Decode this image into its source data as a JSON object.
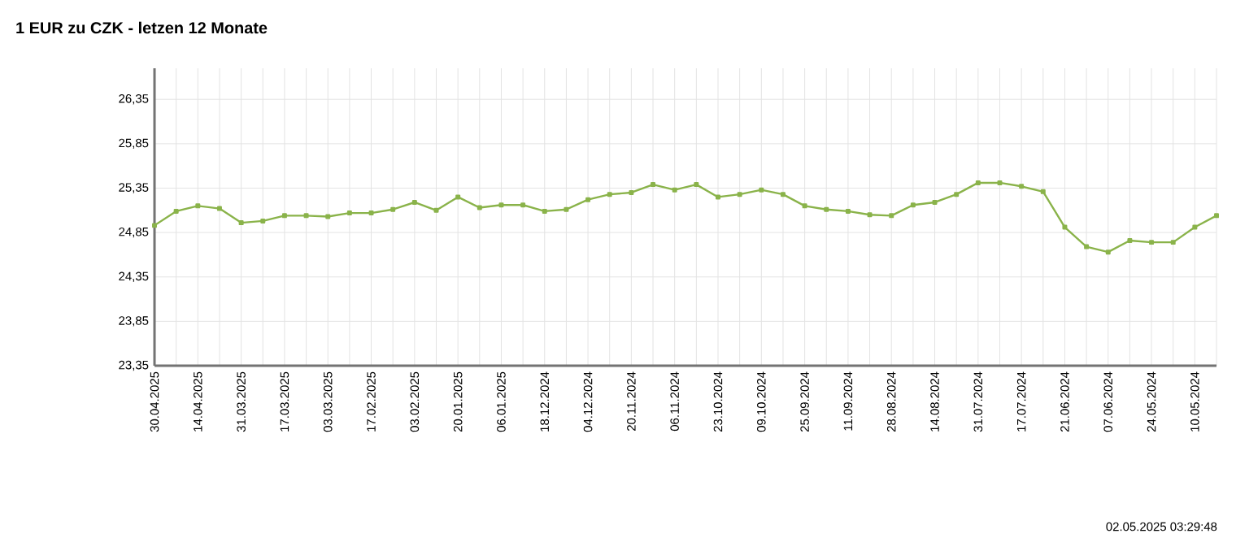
{
  "chart_data": {
    "type": "line",
    "title": "1 EUR zu CZK - letzen 12 Monate",
    "categories": [
      "30.04.2025",
      null,
      "14.04.2025",
      null,
      "31.03.2025",
      null,
      "17.03.2025",
      null,
      "03.03.2025",
      null,
      "17.02.2025",
      null,
      "03.02.2025",
      null,
      "20.01.2025",
      null,
      "06.01.2025",
      null,
      "18.12.2024",
      null,
      "04.12.2024",
      null,
      "20.11.2024",
      null,
      "06.11.2024",
      null,
      "23.10.2024",
      null,
      "09.10.2024",
      null,
      "25.09.2024",
      null,
      "11.09.2024",
      null,
      "28.08.2024",
      null,
      "14.08.2024",
      null,
      "31.07.2024",
      null,
      "17.07.2024",
      null,
      "21.06.2024",
      null,
      "07.06.2024",
      null,
      "24.05.2024",
      null,
      "10.05.2024",
      null
    ],
    "series": [
      {
        "color": "#8ab34a",
        "values": [
          24.93,
          25.09,
          25.15,
          25.12,
          24.96,
          24.98,
          25.04,
          25.04,
          25.03,
          25.07,
          25.07,
          25.11,
          25.19,
          25.1,
          25.25,
          25.13,
          25.16,
          25.16,
          25.09,
          25.11,
          25.22,
          25.28,
          25.3,
          25.39,
          25.33,
          25.39,
          25.25,
          25.28,
          25.33,
          25.28,
          25.15,
          25.11,
          25.09,
          25.05,
          25.04,
          25.16,
          25.19,
          25.28,
          25.41,
          25.41,
          25.37,
          25.31,
          24.91,
          24.69,
          24.63,
          24.76,
          24.74,
          24.74,
          24.91,
          25.04
        ]
      }
    ],
    "ylim": [
      23.35,
      26.7
    ],
    "yticks": [
      {
        "value": 23.35,
        "label": "23,35"
      },
      {
        "value": 23.85,
        "label": "23,85"
      },
      {
        "value": 24.35,
        "label": "24,35"
      },
      {
        "value": 24.85,
        "label": "24,85"
      },
      {
        "value": 25.35,
        "label": "25,35"
      },
      {
        "value": 25.85,
        "label": "25,85"
      },
      {
        "value": 26.35,
        "label": "26,35"
      }
    ],
    "grid": true,
    "marker": "square",
    "annotations": [
      "02.05.2025 03:29:48"
    ]
  }
}
